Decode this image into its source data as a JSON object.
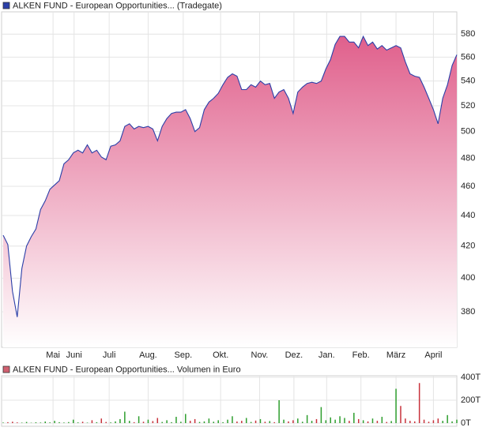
{
  "chart_data": [
    {
      "type": "area",
      "title": "ALKEN FUND - European Opportunities... (Tradegate)",
      "color": "#2b3fa8",
      "fill_color": "#e0608c",
      "log_scale": true,
      "grid": true,
      "values": [
        427,
        421,
        392,
        377,
        406,
        420,
        426,
        431,
        444,
        450,
        458,
        461,
        464,
        476,
        479,
        484,
        486,
        484,
        490,
        484,
        486,
        481,
        479,
        489,
        490,
        493,
        504,
        506,
        502,
        504,
        503,
        504,
        502,
        493,
        504,
        510,
        514,
        515,
        515,
        517,
        510,
        500,
        503,
        517,
        523,
        526,
        530,
        537,
        543,
        546,
        544,
        533,
        533,
        537,
        535,
        540,
        537,
        538,
        526,
        531,
        533,
        526,
        514,
        531,
        535,
        538,
        539,
        538,
        540,
        550,
        558,
        571,
        578,
        578,
        573,
        573,
        568,
        578,
        570,
        573,
        567,
        570,
        566,
        568,
        570,
        568,
        556,
        546,
        544,
        543,
        535,
        526,
        517,
        506,
        526,
        537,
        553,
        562
      ],
      "xlim": [
        0,
        97
      ],
      "xticks": [
        {
          "value": 10.67,
          "label": "Mai"
        },
        {
          "value": 15.17,
          "label": "Juni"
        },
        {
          "value": 22.67,
          "label": "Juli"
        },
        {
          "value": 31,
          "label": "Aug."
        },
        {
          "value": 38.5,
          "label": "Sep."
        },
        {
          "value": 46.5,
          "label": "Okt."
        },
        {
          "value": 54.83,
          "label": "Nov."
        },
        {
          "value": 62.17,
          "label": "Dez."
        },
        {
          "value": 69.17,
          "label": "Jan."
        },
        {
          "value": 76.5,
          "label": "Feb."
        },
        {
          "value": 84,
          "label": "März"
        },
        {
          "value": 92,
          "label": "April"
        }
      ],
      "ylim": [
        360,
        600
      ],
      "yticks": [
        380,
        400,
        420,
        440,
        460,
        480,
        500,
        520,
        540,
        560,
        580
      ]
    },
    {
      "type": "bar",
      "title": "ALKEN FUND - European Opportunities... Volumen in Euro",
      "color": "#d06070",
      "up_color": "#2e9e2e",
      "down_color": "#c8323c",
      "grid": true,
      "values": [
        5,
        8,
        12,
        6,
        4,
        10,
        3,
        7,
        5,
        14,
        6,
        20,
        8,
        5,
        9,
        30,
        6,
        12,
        4,
        25,
        8,
        40,
        10,
        6,
        15,
        35,
        100,
        20,
        8,
        60,
        12,
        30,
        18,
        45,
        10,
        25,
        8,
        55,
        12,
        80,
        20,
        35,
        10,
        15,
        40,
        12,
        25,
        8,
        30,
        60,
        14,
        20,
        45,
        10,
        22,
        35,
        12,
        18,
        8,
        200,
        30,
        15,
        25,
        40,
        12,
        70,
        20,
        35,
        140,
        25,
        50,
        30,
        60,
        45,
        20,
        90,
        35,
        25,
        15,
        40,
        20,
        55,
        10,
        18,
        300,
        150,
        40,
        20,
        15,
        350,
        30,
        12,
        25,
        40,
        20,
        70,
        15,
        30
      ],
      "xlim": [
        0,
        97
      ],
      "ylim": [
        0,
        400
      ],
      "yticks": [
        {
          "value": 0,
          "label": "0T"
        },
        {
          "value": 200,
          "label": "200T"
        },
        {
          "value": 400,
          "label": "400T"
        }
      ]
    }
  ]
}
